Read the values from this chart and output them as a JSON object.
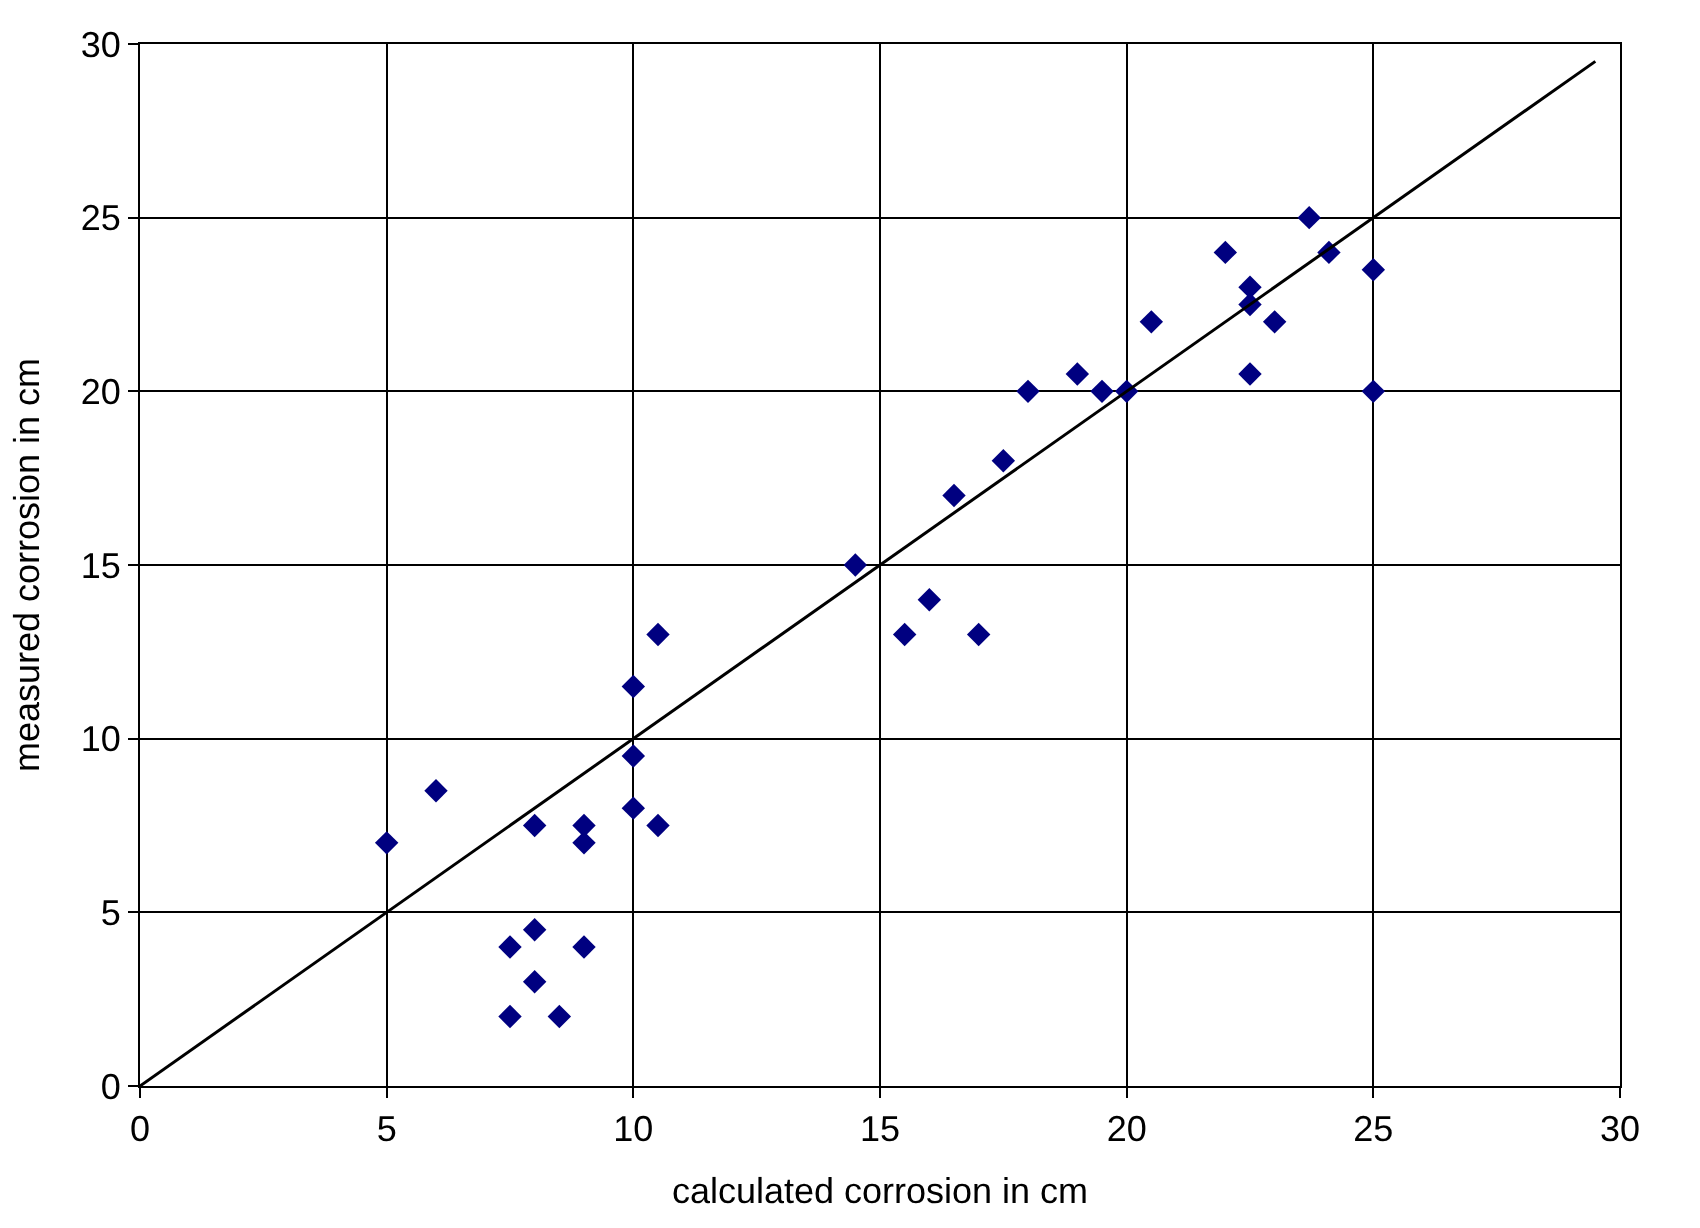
{
  "chart_data": {
    "type": "scatter",
    "xlabel": "calculated corrosion in cm",
    "ylabel": "measured corrosion in cm",
    "xlim": [
      0,
      30
    ],
    "ylim": [
      0,
      30
    ],
    "xticks": [
      0,
      5,
      10,
      15,
      20,
      25,
      30
    ],
    "yticks": [
      0,
      5,
      10,
      15,
      20,
      25,
      30
    ],
    "grid": true,
    "marker": "diamond",
    "series": [
      {
        "color": "#000080",
        "x": [
          5,
          6,
          7.5,
          7.5,
          8,
          8,
          8,
          8.5,
          9,
          9,
          9,
          10,
          10,
          10,
          10.5,
          10.5,
          14.5,
          15.5,
          16,
          17,
          16.5,
          17.5,
          18,
          19,
          19.5,
          20,
          20.5,
          22,
          22.5,
          22.5,
          22.5,
          23,
          23.7,
          24.1,
          25,
          25
        ],
        "values": [
          7,
          8.5,
          4,
          2,
          7.5,
          4.5,
          3,
          2,
          7.5,
          7,
          4,
          11.5,
          9.5,
          8,
          13,
          7.5,
          15,
          13,
          14,
          13,
          17,
          18,
          20,
          20.5,
          20,
          20,
          22,
          24,
          23,
          22.5,
          20.5,
          22,
          25,
          24,
          23.5,
          20
        ]
      },
      {
        "type": "line",
        "color": "#000000",
        "line_style": "solid",
        "marker": "none",
        "x": [
          0,
          29.5
        ],
        "values": [
          0,
          29.5
        ]
      }
    ]
  }
}
